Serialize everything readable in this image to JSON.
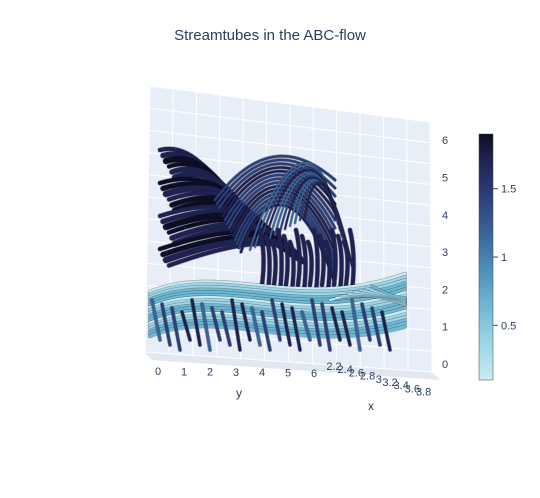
{
  "chart_data": {
    "type": "streamtube",
    "title": "Streamtubes in the ABC-flow",
    "x_axis": {
      "label": "x",
      "ticks": [
        "2.2",
        "2.4",
        "2.6",
        "2.8",
        "3",
        "3.2",
        "3.4",
        "3.6",
        "3.8"
      ]
    },
    "y_axis": {
      "label": "y",
      "ticks": [
        "0",
        "1",
        "2",
        "3",
        "4",
        "5",
        "6"
      ]
    },
    "z_axis": {
      "label": "",
      "ticks": [
        "0",
        "1",
        "2",
        "3",
        "4",
        "5",
        "6"
      ]
    },
    "colorbar": {
      "ticks": [
        "0.5",
        "1",
        "1.5"
      ],
      "range": [
        0.1,
        1.9
      ]
    },
    "colorscale": [
      "#c9ecf3",
      "#9cd6e6",
      "#6fb8d3",
      "#4d8fb8",
      "#3a6399",
      "#2c3e77",
      "#1f2250",
      "#0d0d24"
    ],
    "grid": true,
    "legend": "none"
  }
}
